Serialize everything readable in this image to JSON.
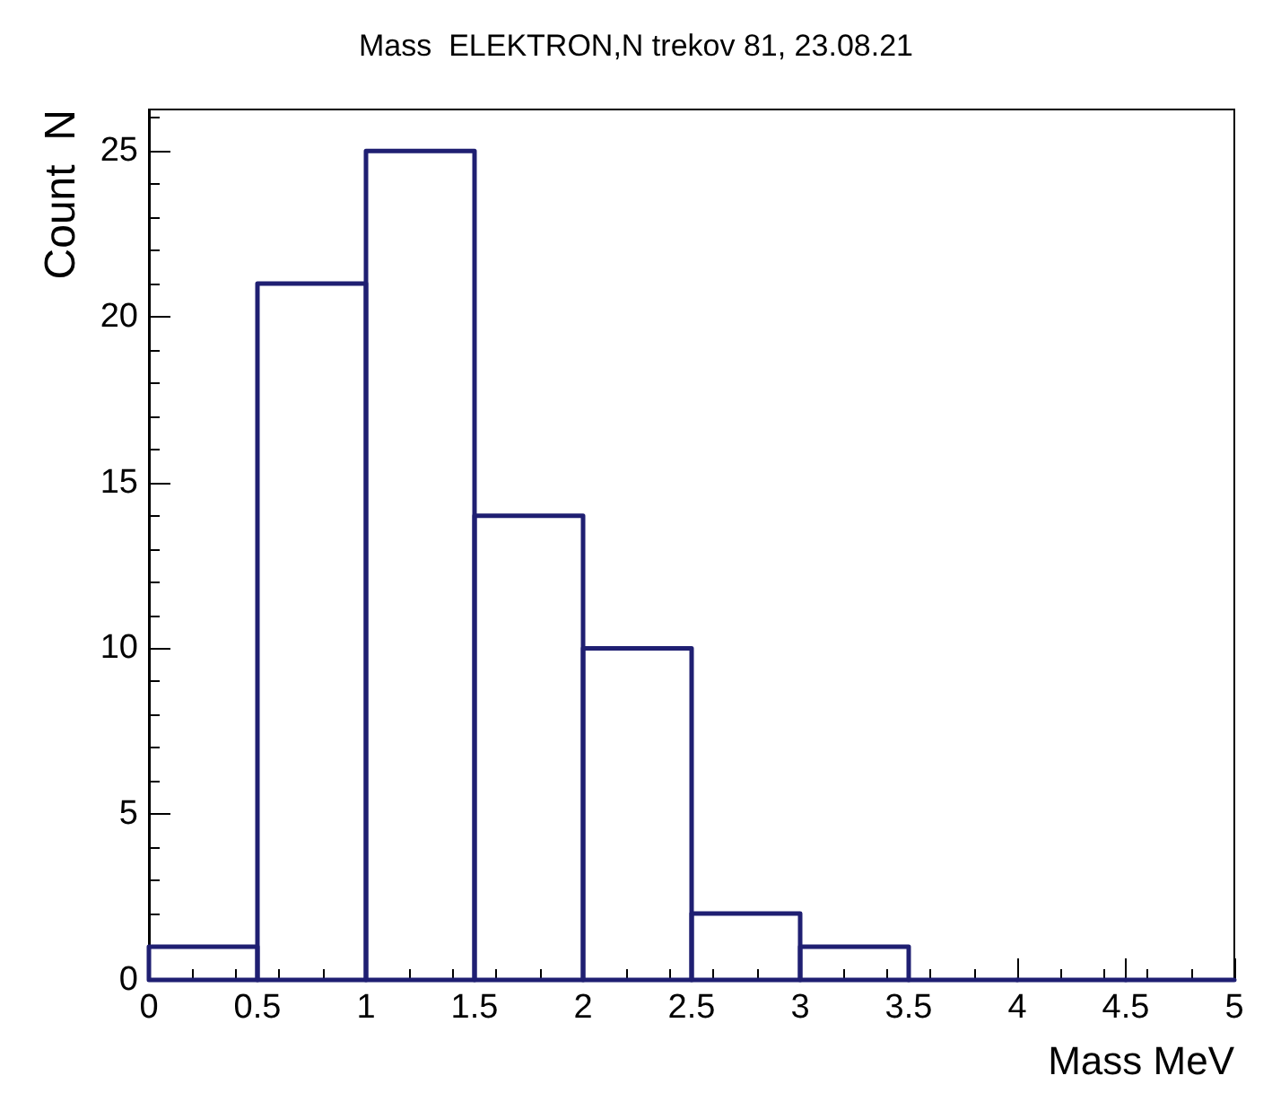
{
  "chart_data": {
    "type": "histogram",
    "title": "Mass  ELEKTRON,N trekov 81, 23.08.21",
    "xlabel": "Mass MeV",
    "ylabel": "Count  N",
    "bins": [
      0,
      0.5,
      1,
      1.5,
      2,
      2.5,
      3,
      3.5,
      4,
      4.5,
      5
    ],
    "values": [
      1,
      21,
      25,
      14,
      10,
      2,
      1,
      0,
      0,
      0
    ],
    "color": "#1f1f72",
    "xlim": [
      0,
      5
    ],
    "xticks": [
      0,
      0.5,
      1,
      1.5,
      2,
      2.5,
      3,
      3.5,
      4,
      4.5,
      5
    ],
    "ylim": [
      0,
      26.25
    ],
    "yticks": [
      0,
      5,
      10,
      15,
      20,
      25
    ]
  }
}
